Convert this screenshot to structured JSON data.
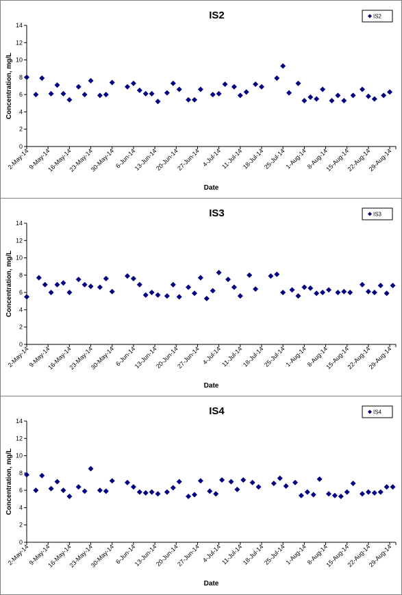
{
  "chart_data": [
    {
      "type": "scatter",
      "title": "IS2",
      "xlabel": "Date",
      "ylabel": "Concentration, mg/L",
      "ylim": [
        0,
        14
      ],
      "yticks": [
        0,
        2,
        4,
        6,
        8,
        10,
        12,
        14
      ],
      "xlim": [
        "2014-05-02",
        "2014-08-31"
      ],
      "xtick_labels": [
        "2-May-14",
        "9-May-14",
        "16-May-14",
        "23-May-14",
        "30-May-14",
        "6-Jun-14",
        "13-Jun-14",
        "20-Jun-14",
        "27-Jun-14",
        "4-Jul-14",
        "11-Jul-14",
        "18-Jul-14",
        "25-Jul-14",
        "1-Aug-14",
        "8-Aug-14",
        "15-Aug-14",
        "22-Aug-14",
        "29-Aug-14"
      ],
      "grid": false,
      "legend_position": "top-right",
      "series": [
        {
          "name": "IS2",
          "color": "#000080",
          "marker": "diamond",
          "x": [
            "2014-05-02",
            "2014-05-05",
            "2014-05-07",
            "2014-05-10",
            "2014-05-12",
            "2014-05-14",
            "2014-05-16",
            "2014-05-19",
            "2014-05-21",
            "2014-05-23",
            "2014-05-26",
            "2014-05-28",
            "2014-05-30",
            "2014-06-04",
            "2014-06-06",
            "2014-06-08",
            "2014-06-10",
            "2014-06-12",
            "2014-06-14",
            "2014-06-17",
            "2014-06-19",
            "2014-06-21",
            "2014-06-24",
            "2014-06-26",
            "2014-06-28",
            "2014-07-02",
            "2014-07-04",
            "2014-07-06",
            "2014-07-09",
            "2014-07-11",
            "2014-07-13",
            "2014-07-16",
            "2014-07-18",
            "2014-07-23",
            "2014-07-25",
            "2014-07-27",
            "2014-07-30",
            "2014-08-01",
            "2014-08-03",
            "2014-08-05",
            "2014-08-07",
            "2014-08-10",
            "2014-08-12",
            "2014-08-14",
            "2014-08-17",
            "2014-08-20",
            "2014-08-22",
            "2014-08-24",
            "2014-08-27",
            "2014-08-29"
          ],
          "y": [
            8.0,
            6.0,
            7.9,
            6.1,
            7.1,
            6.1,
            5.4,
            6.9,
            6.0,
            7.6,
            5.9,
            6.0,
            7.4,
            6.9,
            7.3,
            6.5,
            6.1,
            6.1,
            5.2,
            6.2,
            7.3,
            6.6,
            5.4,
            5.4,
            6.6,
            6.0,
            6.1,
            7.2,
            6.9,
            5.9,
            6.3,
            7.2,
            6.9,
            7.9,
            9.3,
            6.2,
            7.3,
            5.3,
            5.7,
            5.5,
            6.6,
            5.3,
            5.9,
            5.3,
            5.9,
            6.6,
            5.8,
            5.5,
            5.9,
            6.3
          ]
        }
      ]
    },
    {
      "type": "scatter",
      "title": "IS3",
      "xlabel": "Date",
      "ylabel": "Concentration, mg/L",
      "ylim": [
        0,
        14
      ],
      "yticks": [
        0,
        2,
        4,
        6,
        8,
        10,
        12,
        14
      ],
      "xlim": [
        "2014-05-02",
        "2014-08-31"
      ],
      "xtick_labels": [
        "2-May-14",
        "9-May-14",
        "16-May-14",
        "23-May-14",
        "30-May-14",
        "6-Jun-14",
        "13-Jun-14",
        "20-Jun-14",
        "27-Jun-14",
        "4-Jul-14",
        "11-Jul-14",
        "18-Jul-14",
        "25-Jul-14",
        "1-Aug-14",
        "8-Aug-14",
        "15-Aug-14",
        "22-Aug-14",
        "29-Aug-14"
      ],
      "grid": false,
      "legend_position": "top-right",
      "series": [
        {
          "name": "IS3",
          "color": "#000080",
          "marker": "diamond",
          "x": [
            "2014-05-02",
            "2014-05-06",
            "2014-05-08",
            "2014-05-10",
            "2014-05-12",
            "2014-05-14",
            "2014-05-16",
            "2014-05-19",
            "2014-05-21",
            "2014-05-23",
            "2014-05-26",
            "2014-05-28",
            "2014-05-30",
            "2014-06-04",
            "2014-06-06",
            "2014-06-08",
            "2014-06-10",
            "2014-06-12",
            "2014-06-14",
            "2014-06-17",
            "2014-06-19",
            "2014-06-21",
            "2014-06-24",
            "2014-06-26",
            "2014-06-28",
            "2014-06-30",
            "2014-07-02",
            "2014-07-04",
            "2014-07-07",
            "2014-07-09",
            "2014-07-11",
            "2014-07-14",
            "2014-07-16",
            "2014-07-21",
            "2014-07-23",
            "2014-07-25",
            "2014-07-28",
            "2014-07-30",
            "2014-08-01",
            "2014-08-03",
            "2014-08-05",
            "2014-08-07",
            "2014-08-09",
            "2014-08-12",
            "2014-08-14",
            "2014-08-16",
            "2014-08-20",
            "2014-08-22",
            "2014-08-24",
            "2014-08-26",
            "2014-08-28",
            "2014-08-30"
          ],
          "y": [
            5.5,
            7.7,
            6.9,
            6.0,
            6.9,
            7.1,
            6.0,
            7.5,
            6.9,
            6.7,
            6.6,
            7.6,
            6.1,
            7.9,
            7.6,
            6.9,
            5.7,
            6.0,
            5.7,
            5.6,
            6.9,
            5.5,
            6.6,
            5.9,
            7.7,
            5.3,
            6.2,
            8.3,
            7.5,
            6.6,
            5.6,
            8.0,
            6.4,
            7.9,
            8.1,
            6.0,
            6.3,
            5.6,
            6.6,
            6.5,
            5.9,
            6.0,
            6.3,
            6.0,
            6.1,
            6.0,
            6.9,
            6.1,
            6.0,
            6.8,
            5.9,
            6.8
          ]
        }
      ]
    },
    {
      "type": "scatter",
      "title": "IS4",
      "xlabel": "Date",
      "ylabel": "Concentration, mg/L",
      "ylim": [
        0,
        14
      ],
      "yticks": [
        0,
        2,
        4,
        6,
        8,
        10,
        12,
        14
      ],
      "xlim": [
        "2014-05-02",
        "2014-08-31"
      ],
      "xtick_labels": [
        "2-May-14",
        "9-May-14",
        "16-May-14",
        "23-May-14",
        "30-May-14",
        "6-Jun-14",
        "13-Jun-14",
        "20-Jun-14",
        "27-Jun-14",
        "4-Jul-14",
        "11-Jul-14",
        "18-Jul-14",
        "25-Jul-14",
        "1-Aug-14",
        "8-Aug-14",
        "15-Aug-14",
        "22-Aug-14",
        "29-Aug-14"
      ],
      "grid": false,
      "legend_position": "top-right",
      "series": [
        {
          "name": "IS4",
          "color": "#000080",
          "marker": "diamond",
          "x": [
            "2014-05-02",
            "2014-05-05",
            "2014-05-07",
            "2014-05-10",
            "2014-05-12",
            "2014-05-14",
            "2014-05-16",
            "2014-05-19",
            "2014-05-21",
            "2014-05-23",
            "2014-05-26",
            "2014-05-28",
            "2014-05-30",
            "2014-06-04",
            "2014-06-06",
            "2014-06-08",
            "2014-06-10",
            "2014-06-12",
            "2014-06-14",
            "2014-06-17",
            "2014-06-19",
            "2014-06-21",
            "2014-06-24",
            "2014-06-26",
            "2014-06-28",
            "2014-07-01",
            "2014-07-03",
            "2014-07-05",
            "2014-07-08",
            "2014-07-10",
            "2014-07-12",
            "2014-07-15",
            "2014-07-17",
            "2014-07-22",
            "2014-07-24",
            "2014-07-26",
            "2014-07-29",
            "2014-07-31",
            "2014-08-02",
            "2014-08-04",
            "2014-08-06",
            "2014-08-09",
            "2014-08-11",
            "2014-08-13",
            "2014-08-15",
            "2014-08-17",
            "2014-08-20",
            "2014-08-22",
            "2014-08-24",
            "2014-08-26",
            "2014-08-28",
            "2014-08-30"
          ],
          "y": [
            7.8,
            6.0,
            7.7,
            6.2,
            7.0,
            6.0,
            5.3,
            6.4,
            5.9,
            8.5,
            6.0,
            5.9,
            7.1,
            6.9,
            6.4,
            5.8,
            5.7,
            5.8,
            5.6,
            5.8,
            6.3,
            7.0,
            5.3,
            5.5,
            7.1,
            5.9,
            5.6,
            7.2,
            7.0,
            6.1,
            7.2,
            6.9,
            6.4,
            6.8,
            7.4,
            6.5,
            6.9,
            5.4,
            5.8,
            5.5,
            7.3,
            5.6,
            5.4,
            5.3,
            5.8,
            6.8,
            5.6,
            5.8,
            5.7,
            5.8,
            6.4,
            6.4
          ]
        }
      ]
    }
  ]
}
